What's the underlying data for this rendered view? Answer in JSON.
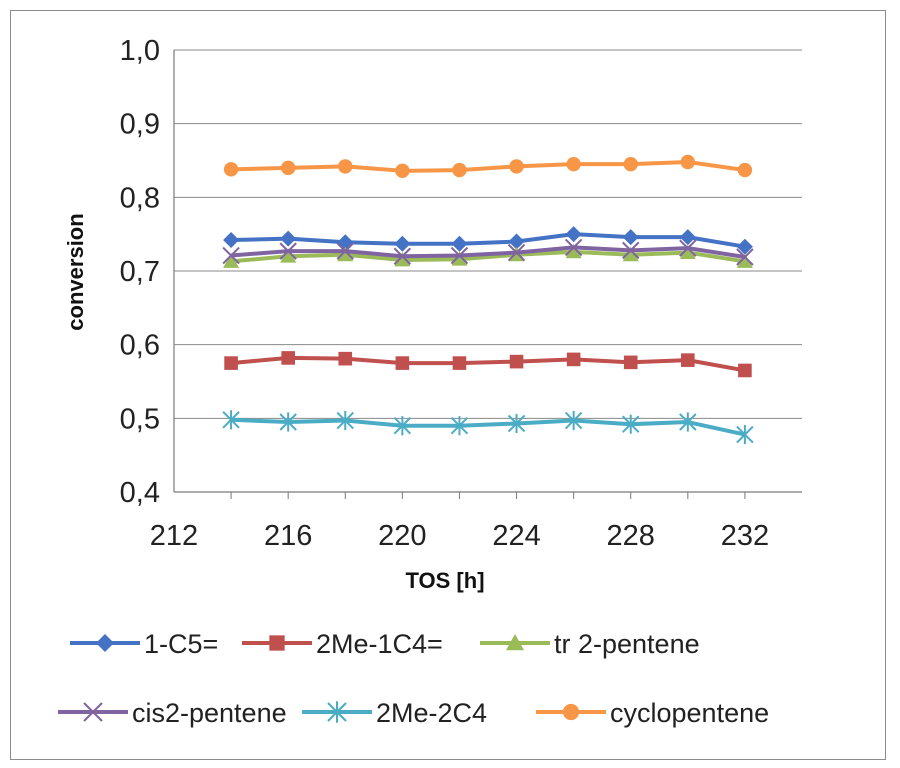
{
  "chart_data": {
    "type": "line",
    "title": "",
    "xlabel": "TOS [h]",
    "ylabel": "conversion",
    "x": [
      214,
      216,
      218,
      220,
      222,
      224,
      226,
      228,
      230,
      232
    ],
    "xlim": [
      212,
      234
    ],
    "x_tick_labels": [
      "212",
      "216",
      "220",
      "224",
      "228",
      "232"
    ],
    "ylim": [
      0.4,
      1.0
    ],
    "y_tick_labels": [
      "0,4",
      "0,5",
      "0,6",
      "0,7",
      "0,8",
      "0,9",
      "1,0"
    ],
    "grid": "horizontal",
    "legend_position": "bottom",
    "series": [
      {
        "name": "1-C5=",
        "color": "#4472c4",
        "marker": "diamond",
        "values": [
          0.742,
          0.744,
          0.739,
          0.737,
          0.737,
          0.74,
          0.75,
          0.746,
          0.746,
          0.733
        ]
      },
      {
        "name": "2Me-1C4=",
        "color": "#c0504d",
        "marker": "square",
        "values": [
          0.575,
          0.582,
          0.581,
          0.575,
          0.575,
          0.577,
          0.58,
          0.576,
          0.579,
          0.565
        ]
      },
      {
        "name": "tr 2-pentene",
        "color": "#9bbb59",
        "marker": "triangle",
        "values": [
          0.713,
          0.72,
          0.722,
          0.715,
          0.716,
          0.722,
          0.726,
          0.722,
          0.725,
          0.713
        ]
      },
      {
        "name": "cis2-pentene",
        "color": "#8064a2",
        "marker": "x",
        "values": [
          0.721,
          0.727,
          0.727,
          0.72,
          0.721,
          0.725,
          0.732,
          0.728,
          0.731,
          0.719
        ]
      },
      {
        "name": "2Me-2C4",
        "color": "#4bacc6",
        "marker": "star",
        "values": [
          0.498,
          0.495,
          0.497,
          0.49,
          0.49,
          0.493,
          0.497,
          0.492,
          0.495,
          0.478
        ]
      },
      {
        "name": "cyclopentene",
        "color": "#f79646",
        "marker": "circle",
        "values": [
          0.838,
          0.84,
          0.842,
          0.836,
          0.837,
          0.842,
          0.845,
          0.845,
          0.848,
          0.837
        ]
      }
    ]
  }
}
